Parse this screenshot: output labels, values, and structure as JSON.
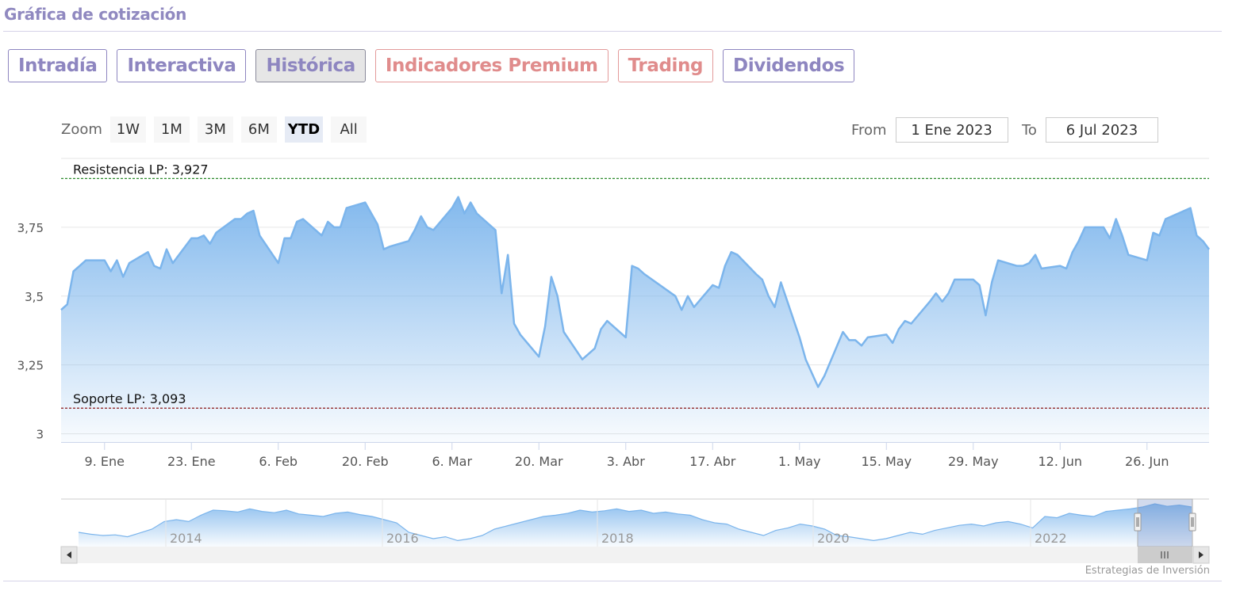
{
  "page": {
    "title": "Gráfica de cotización",
    "credit": "Estrategias de Inversión"
  },
  "tabs": [
    {
      "label": "Intradía",
      "active": false,
      "premium": false
    },
    {
      "label": "Interactiva",
      "active": false,
      "premium": false
    },
    {
      "label": "Histórica",
      "active": true,
      "premium": false
    },
    {
      "label": "Indicadores Premium",
      "active": false,
      "premium": true
    },
    {
      "label": "Trading",
      "active": false,
      "premium": true
    },
    {
      "label": "Dividendos",
      "active": false,
      "premium": false
    }
  ],
  "zoom": {
    "label": "Zoom",
    "buttons": [
      "1W",
      "1M",
      "3M",
      "6M",
      "YTD",
      "All"
    ],
    "active": "YTD"
  },
  "range": {
    "from_label": "From",
    "from_value": "1 Ene 2023",
    "to_label": "To",
    "to_value": "6 Jul 2023"
  },
  "colors": {
    "line": "#7cb5ec",
    "resistance": "#2e8b2e",
    "support": "#8b1a1a",
    "accent": "#8e86c0",
    "premium": "#e08c8c"
  },
  "chart_data": {
    "type": "area",
    "xlabel": "",
    "ylabel": "",
    "ylim": [
      2.97,
      4.0
    ],
    "yticks": [
      3.0,
      3.25,
      3.5,
      3.75
    ],
    "ytick_labels": [
      "3",
      "3,25",
      "3,5",
      "3,75"
    ],
    "xlim": [
      "2023-01-02",
      "2023-07-06"
    ],
    "xtick_labels": [
      {
        "date": "2023-01-09",
        "label": "9. Ene"
      },
      {
        "date": "2023-01-23",
        "label": "23. Ene"
      },
      {
        "date": "2023-02-06",
        "label": "6. Feb"
      },
      {
        "date": "2023-02-20",
        "label": "20. Feb"
      },
      {
        "date": "2023-03-06",
        "label": "6. Mar"
      },
      {
        "date": "2023-03-20",
        "label": "20. Mar"
      },
      {
        "date": "2023-04-03",
        "label": "3. Abr"
      },
      {
        "date": "2023-04-17",
        "label": "17. Abr"
      },
      {
        "date": "2023-05-01",
        "label": "1. May"
      },
      {
        "date": "2023-05-15",
        "label": "15. May"
      },
      {
        "date": "2023-05-29",
        "label": "29. May"
      },
      {
        "date": "2023-06-12",
        "label": "12. Jun"
      },
      {
        "date": "2023-06-26",
        "label": "26. Jun"
      }
    ],
    "reference_lines": [
      {
        "label": "Resistencia LP: 3,927",
        "value": 3.927,
        "style": "dashed",
        "color": "#2e8b2e"
      },
      {
        "label": "Soporte LP: 3,093",
        "value": 3.093,
        "style": "dashed",
        "color": "#8b1a1a"
      }
    ],
    "series": [
      {
        "x": [
          "2023-01-02",
          "2023-01-03",
          "2023-01-04",
          "2023-01-05",
          "2023-01-06",
          "2023-01-09",
          "2023-01-10",
          "2023-01-11",
          "2023-01-12",
          "2023-01-13",
          "2023-01-16",
          "2023-01-17",
          "2023-01-18",
          "2023-01-19",
          "2023-01-20",
          "2023-01-23",
          "2023-01-24",
          "2023-01-25",
          "2023-01-26",
          "2023-01-27",
          "2023-01-30",
          "2023-01-31",
          "2023-02-01",
          "2023-02-02",
          "2023-02-03",
          "2023-02-06",
          "2023-02-07",
          "2023-02-08",
          "2023-02-09",
          "2023-02-10",
          "2023-02-13",
          "2023-02-14",
          "2023-02-15",
          "2023-02-16",
          "2023-02-17",
          "2023-02-20",
          "2023-02-21",
          "2023-02-22",
          "2023-02-23",
          "2023-02-24",
          "2023-02-27",
          "2023-02-28",
          "2023-03-01",
          "2023-03-02",
          "2023-03-03",
          "2023-03-06",
          "2023-03-07",
          "2023-03-08",
          "2023-03-09",
          "2023-03-10",
          "2023-03-13",
          "2023-03-14",
          "2023-03-15",
          "2023-03-16",
          "2023-03-17",
          "2023-03-20",
          "2023-03-21",
          "2023-03-22",
          "2023-03-23",
          "2023-03-24",
          "2023-03-27",
          "2023-03-28",
          "2023-03-29",
          "2023-03-30",
          "2023-03-31",
          "2023-04-03",
          "2023-04-04",
          "2023-04-05",
          "2023-04-06",
          "2023-04-11",
          "2023-04-12",
          "2023-04-13",
          "2023-04-14",
          "2023-04-17",
          "2023-04-18",
          "2023-04-19",
          "2023-04-20",
          "2023-04-21",
          "2023-04-24",
          "2023-04-25",
          "2023-04-26",
          "2023-04-27",
          "2023-04-28",
          "2023-05-01",
          "2023-05-02",
          "2023-05-03",
          "2023-05-04",
          "2023-05-05",
          "2023-05-08",
          "2023-05-09",
          "2023-05-10",
          "2023-05-11",
          "2023-05-12",
          "2023-05-15",
          "2023-05-16",
          "2023-05-17",
          "2023-05-18",
          "2023-05-19",
          "2023-05-22",
          "2023-05-23",
          "2023-05-24",
          "2023-05-25",
          "2023-05-26",
          "2023-05-29",
          "2023-05-30",
          "2023-05-31",
          "2023-06-01",
          "2023-06-02",
          "2023-06-05",
          "2023-06-06",
          "2023-06-07",
          "2023-06-08",
          "2023-06-09",
          "2023-06-12",
          "2023-06-13",
          "2023-06-14",
          "2023-06-15",
          "2023-06-16",
          "2023-06-19",
          "2023-06-20",
          "2023-06-21",
          "2023-06-22",
          "2023-06-23",
          "2023-06-26",
          "2023-06-27",
          "2023-06-28",
          "2023-06-29",
          "2023-06-30",
          "2023-07-03",
          "2023-07-04",
          "2023-07-05",
          "2023-07-06"
        ],
        "values": [
          3.45,
          3.47,
          3.59,
          3.61,
          3.63,
          3.63,
          3.59,
          3.63,
          3.57,
          3.62,
          3.66,
          3.61,
          3.6,
          3.67,
          3.62,
          3.71,
          3.71,
          3.72,
          3.69,
          3.73,
          3.78,
          3.78,
          3.8,
          3.81,
          3.72,
          3.62,
          3.71,
          3.71,
          3.77,
          3.78,
          3.72,
          3.77,
          3.75,
          3.75,
          3.82,
          3.84,
          3.8,
          3.76,
          3.67,
          3.68,
          3.7,
          3.74,
          3.79,
          3.75,
          3.74,
          3.82,
          3.86,
          3.8,
          3.84,
          3.8,
          3.74,
          3.51,
          3.65,
          3.4,
          3.36,
          3.28,
          3.39,
          3.57,
          3.5,
          3.37,
          3.27,
          3.29,
          3.31,
          3.38,
          3.41,
          3.35,
          3.61,
          3.6,
          3.58,
          3.5,
          3.45,
          3.5,
          3.46,
          3.54,
          3.53,
          3.61,
          3.66,
          3.65,
          3.58,
          3.56,
          3.5,
          3.46,
          3.55,
          3.35,
          3.27,
          3.22,
          3.17,
          3.21,
          3.37,
          3.34,
          3.34,
          3.32,
          3.35,
          3.36,
          3.33,
          3.38,
          3.41,
          3.4,
          3.48,
          3.51,
          3.48,
          3.51,
          3.56,
          3.56,
          3.54,
          3.43,
          3.55,
          3.63,
          3.61,
          3.61,
          3.62,
          3.65,
          3.6,
          3.61,
          3.6,
          3.66,
          3.7,
          3.75,
          3.75,
          3.71,
          3.78,
          3.72,
          3.65,
          3.63,
          3.73,
          3.72,
          3.78,
          3.79,
          3.82,
          3.72,
          3.7,
          3.67
        ]
      }
    ]
  },
  "navigator": {
    "year_labels": [
      "2014",
      "2016",
      "2018",
      "2020",
      "2022"
    ],
    "values": [
      3.15,
      3.12,
      3.1,
      3.11,
      3.08,
      3.14,
      3.2,
      3.32,
      3.35,
      3.32,
      3.42,
      3.5,
      3.49,
      3.47,
      3.52,
      3.48,
      3.46,
      3.5,
      3.44,
      3.42,
      3.4,
      3.45,
      3.47,
      3.43,
      3.4,
      3.35,
      3.3,
      3.15,
      3.1,
      3.05,
      3.08,
      3.02,
      3.05,
      3.1,
      3.2,
      3.25,
      3.3,
      3.35,
      3.4,
      3.42,
      3.45,
      3.5,
      3.47,
      3.49,
      3.52,
      3.48,
      3.5,
      3.45,
      3.47,
      3.44,
      3.42,
      3.35,
      3.3,
      3.28,
      3.2,
      3.15,
      3.1,
      3.18,
      3.22,
      3.28,
      3.25,
      3.2,
      3.1,
      3.08,
      3.05,
      3.02,
      3.05,
      3.1,
      3.15,
      3.12,
      3.18,
      3.22,
      3.26,
      3.28,
      3.25,
      3.3,
      3.32,
      3.28,
      3.22,
      3.4,
      3.38,
      3.45,
      3.42,
      3.4,
      3.48,
      3.5,
      3.52,
      3.55,
      3.6,
      3.56,
      3.58,
      3.55
    ]
  }
}
